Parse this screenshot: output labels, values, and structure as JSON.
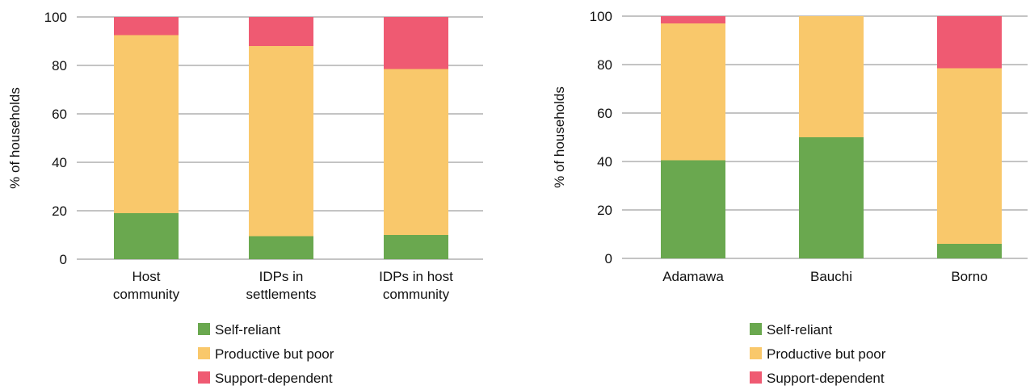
{
  "colors": {
    "self_reliant": "#6aa84f",
    "productive_but_poor": "#f9c86b",
    "support_dependent": "#ef5a72",
    "grid": "#8a8a8a"
  },
  "chart_data": [
    {
      "type": "bar",
      "stacked": true,
      "ylabel": "% of households",
      "ylim": [
        0,
        100
      ],
      "yticks": [
        0,
        20,
        40,
        60,
        80,
        100
      ],
      "categories": [
        [
          "Host",
          "community"
        ],
        [
          "IDPs in",
          "settlements"
        ],
        [
          "IDPs in host",
          "community"
        ]
      ],
      "series": [
        {
          "name": "Self-reliant",
          "key": "self_reliant",
          "values": [
            19,
            9.5,
            10
          ]
        },
        {
          "name": "Productive but poor",
          "key": "productive_but_poor",
          "values": [
            73.5,
            78.5,
            68.5
          ]
        },
        {
          "name": "Support-dependent",
          "key": "support_dependent",
          "values": [
            7.5,
            12,
            21.5
          ]
        }
      ],
      "grid": true,
      "legend_position": "bottom"
    },
    {
      "type": "bar",
      "stacked": true,
      "ylabel": "% of households",
      "ylim": [
        0,
        100
      ],
      "yticks": [
        0,
        20,
        40,
        60,
        80,
        100
      ],
      "categories": [
        [
          "Adamawa"
        ],
        [
          "Bauchi"
        ],
        [
          "Borno"
        ]
      ],
      "series": [
        {
          "name": "Self-reliant",
          "key": "self_reliant",
          "values": [
            40.5,
            50,
            6
          ]
        },
        {
          "name": "Productive but poor",
          "key": "productive_but_poor",
          "values": [
            56.5,
            50,
            72.5
          ]
        },
        {
          "name": "Support-dependent",
          "key": "support_dependent",
          "values": [
            3,
            0,
            21.5
          ]
        }
      ],
      "grid": true,
      "legend_position": "bottom"
    }
  ]
}
